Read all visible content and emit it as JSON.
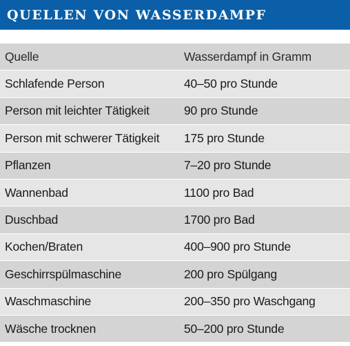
{
  "title": "QUELLEN VON WASSERDAMPF",
  "colors": {
    "title_bar": "#0a5fa8",
    "row_light": "#e6e6e6",
    "row_dark": "#d4d4d4"
  },
  "table": {
    "headers": [
      "Quelle",
      "Wasserdampf in Gramm"
    ],
    "rows": [
      [
        "Schlafende Person",
        "40–50 pro Stunde"
      ],
      [
        "Person mit leichter Tätigkeit",
        "90 pro Stunde"
      ],
      [
        "Person mit schwerer Tätigkeit",
        "175 pro Stunde"
      ],
      [
        "Pflanzen",
        "7–20 pro Stunde"
      ],
      [
        "Wannenbad",
        "1100 pro Bad"
      ],
      [
        "Duschbad",
        "1700 pro Bad"
      ],
      [
        "Kochen/Braten",
        "400–900 pro Stunde"
      ],
      [
        "Geschirrspülmaschine",
        "200 pro Spülgang"
      ],
      [
        "Waschmaschine",
        "200–350 pro Waschgang"
      ],
      [
        "Wäsche trocknen",
        "50–200 pro Stunde"
      ]
    ]
  }
}
